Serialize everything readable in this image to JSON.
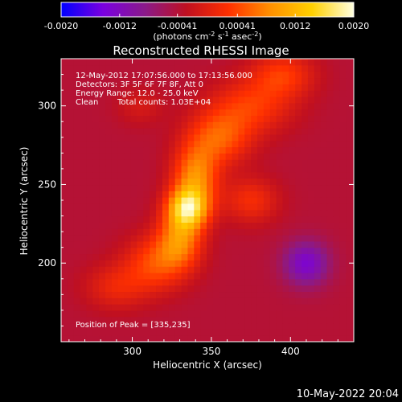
{
  "colorbar": {
    "ticks": [
      "-0.0020",
      "-0.0012",
      "-0.00041",
      "0.00041",
      "0.0012",
      "0.0020"
    ],
    "tick_values": [
      -0.002,
      -0.0012,
      -0.00041,
      0.00041,
      0.0012,
      0.002
    ],
    "range": [
      -0.002,
      0.002
    ],
    "units_prefix": "(photons cm",
    "units_exp1": "-2",
    "units_mid": " s",
    "units_exp2": "-1",
    "units_mid2": " asec",
    "units_exp3": "-2",
    "units_suffix": ")",
    "colormap": [
      "#0000ff",
      "#7a00e0",
      "#8a1a8a",
      "#c01020",
      "#ff3000",
      "#ff9000",
      "#ffd000",
      "#ffffe0"
    ]
  },
  "chart_data": {
    "type": "heatmap",
    "title": "Reconstructed RHESSI Image",
    "xlabel": "Heliocentric X (arcsec)",
    "ylabel": "Heliocentric Y (arcsec)",
    "xlim": [
      255,
      440
    ],
    "ylim": [
      150,
      330
    ],
    "xticks": [
      300,
      350,
      400
    ],
    "yticks": [
      200,
      250,
      300
    ],
    "annotations": {
      "line1": "12-May-2012 17:07:56.000 to 17:13:56.000",
      "line2": "Detectors: 3F 5F 6F 7F 8F, Att 0",
      "line3": "Energy Range: 12.0 - 25.0 keV",
      "line4_a": "Clean",
      "line4_b": "Total counts: 1.03E+04",
      "peak": "Position of Peak = [335,235]"
    },
    "peak_position": [
      335,
      235
    ],
    "background_value": -0.0004,
    "sources": [
      {
        "x": 335,
        "y": 235,
        "sigma_x": 9,
        "sigma_y": 9,
        "amp": 0.0018
      },
      {
        "x": 340,
        "y": 255,
        "sigma_x": 10,
        "sigma_y": 14,
        "amp": 0.0012
      },
      {
        "x": 330,
        "y": 215,
        "sigma_x": 10,
        "sigma_y": 12,
        "amp": 0.0011
      },
      {
        "x": 355,
        "y": 280,
        "sigma_x": 14,
        "sigma_y": 12,
        "amp": 0.0009
      },
      {
        "x": 315,
        "y": 200,
        "sigma_x": 14,
        "sigma_y": 12,
        "amp": 0.0008
      },
      {
        "x": 375,
        "y": 300,
        "sigma_x": 18,
        "sigma_y": 12,
        "amp": 0.0007
      },
      {
        "x": 395,
        "y": 320,
        "sigma_x": 14,
        "sigma_y": 10,
        "amp": 0.0007
      },
      {
        "x": 290,
        "y": 185,
        "sigma_x": 14,
        "sigma_y": 10,
        "amp": 0.0005
      },
      {
        "x": 375,
        "y": 240,
        "sigma_x": 12,
        "sigma_y": 10,
        "amp": 0.0006
      },
      {
        "x": 305,
        "y": 300,
        "sigma_x": 10,
        "sigma_y": 8,
        "amp": 0.0003
      },
      {
        "x": 410,
        "y": 200,
        "sigma_x": 10,
        "sigma_y": 10,
        "amp": -0.0009
      }
    ]
  },
  "footer_timestamp": "10-May-2022 20:04"
}
